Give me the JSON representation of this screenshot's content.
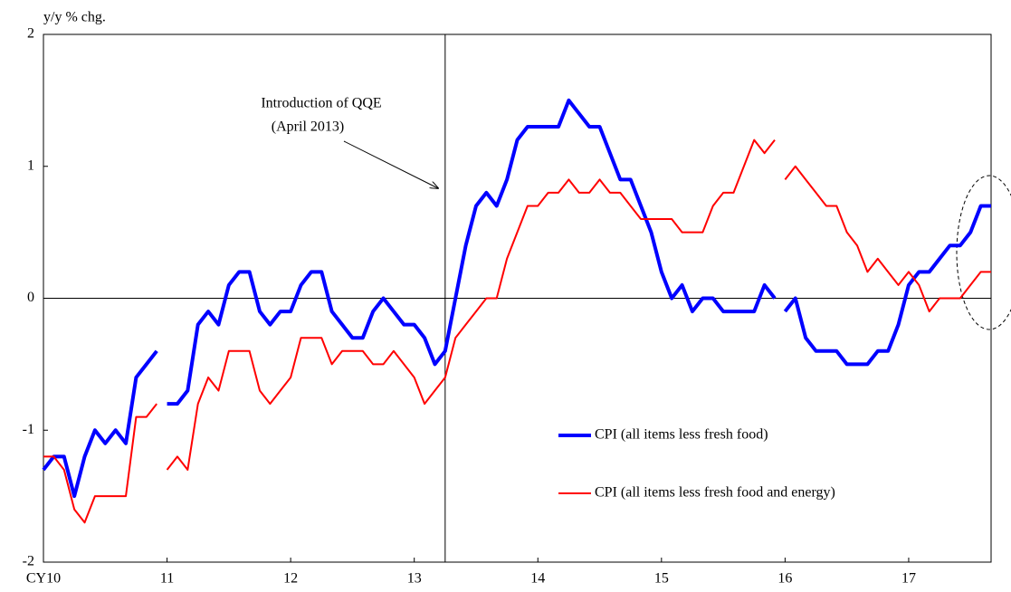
{
  "chart_data": {
    "type": "line",
    "ylabel": "y/y % chg.",
    "annotation": [
      "Introduction of QQE",
      "(April 2013)"
    ],
    "event_x": 39,
    "x": [
      0,
      1,
      2,
      3,
      4,
      5,
      6,
      7,
      8,
      9,
      10,
      11,
      11.5,
      12,
      13,
      14,
      15,
      16,
      17,
      18,
      19,
      20,
      21,
      22,
      23,
      24,
      25,
      26,
      27,
      28,
      29,
      30,
      31,
      32,
      33,
      34,
      35,
      36,
      37,
      38,
      39,
      40,
      41,
      42,
      43,
      44,
      45,
      46,
      47,
      48,
      49,
      50,
      51,
      52,
      53,
      54,
      55,
      56,
      57,
      58,
      59,
      60,
      61,
      62,
      63,
      64,
      65,
      66,
      67,
      68,
      69,
      70,
      71,
      71.5,
      72,
      73,
      74,
      75,
      76,
      77,
      78,
      79,
      80,
      81,
      82,
      83,
      84,
      85,
      86,
      87,
      88,
      89,
      90,
      91,
      92
    ],
    "series": [
      {
        "name": "CPI (all items less fresh food)",
        "color": "#0000ff",
        "values": [
          -1.3,
          -1.2,
          -1.2,
          -1.5,
          -1.2,
          -1.0,
          -1.1,
          -1.0,
          -1.1,
          -0.6,
          -0.5,
          -0.4,
          null,
          -0.8,
          -0.8,
          -0.7,
          -0.2,
          -0.1,
          -0.2,
          0.1,
          0.2,
          0.2,
          -0.1,
          -0.2,
          -0.1,
          -0.1,
          0.1,
          0.2,
          0.2,
          -0.1,
          -0.2,
          -0.3,
          -0.3,
          -0.1,
          0.0,
          -0.1,
          -0.2,
          -0.2,
          -0.3,
          -0.5,
          -0.4,
          0.0,
          0.4,
          0.7,
          0.8,
          0.7,
          0.9,
          1.2,
          1.3,
          1.3,
          1.3,
          1.3,
          1.5,
          1.4,
          1.3,
          1.3,
          1.1,
          0.9,
          0.9,
          0.7,
          0.5,
          0.2,
          0.0,
          0.1,
          -0.1,
          0.0,
          0.0,
          -0.1,
          -0.1,
          -0.1,
          -0.1,
          0.1,
          0.0,
          null,
          -0.1,
          0.0,
          -0.3,
          -0.4,
          -0.4,
          -0.4,
          -0.5,
          -0.5,
          -0.5,
          -0.4,
          -0.4,
          -0.2,
          0.1,
          0.2,
          0.2,
          0.3,
          0.4,
          0.4,
          0.5,
          0.7,
          0.7
        ]
      },
      {
        "name": "CPI (all items less fresh food and energy)",
        "color": "#ff0000",
        "values": [
          -1.2,
          -1.2,
          -1.3,
          -1.6,
          -1.7,
          -1.5,
          -1.5,
          -1.5,
          -1.5,
          -0.9,
          -0.9,
          -0.8,
          null,
          -1.3,
          -1.2,
          -1.3,
          -0.8,
          -0.6,
          -0.7,
          -0.4,
          -0.4,
          -0.4,
          -0.7,
          -0.8,
          -0.7,
          -0.6,
          -0.3,
          -0.3,
          -0.3,
          -0.5,
          -0.4,
          -0.4,
          -0.4,
          -0.5,
          -0.5,
          -0.4,
          -0.5,
          -0.6,
          -0.8,
          -0.7,
          -0.6,
          -0.3,
          -0.2,
          -0.1,
          0.0,
          0.0,
          0.3,
          0.5,
          0.7,
          0.7,
          0.8,
          0.8,
          0.9,
          0.8,
          0.8,
          0.9,
          0.8,
          0.8,
          0.7,
          0.6,
          0.6,
          0.6,
          0.6,
          0.5,
          0.5,
          0.5,
          0.7,
          0.8,
          0.8,
          1.0,
          1.2,
          1.1,
          1.2,
          null,
          0.9,
          1.0,
          0.9,
          0.8,
          0.7,
          0.7,
          0.5,
          0.4,
          0.2,
          0.3,
          0.2,
          0.1,
          0.2,
          0.1,
          -0.1,
          0.0,
          0.0,
          0.0,
          0.1,
          0.2,
          0.2
        ]
      }
    ],
    "xlim": [
      0,
      92
    ],
    "xticks": [
      {
        "value": 0,
        "label": "CY10"
      },
      {
        "value": 12,
        "label": "11"
      },
      {
        "value": 24,
        "label": "12"
      },
      {
        "value": 36,
        "label": "13"
      },
      {
        "value": 48,
        "label": "14"
      },
      {
        "value": 60,
        "label": "15"
      },
      {
        "value": 72,
        "label": "16"
      },
      {
        "value": 84,
        "label": "17"
      }
    ],
    "ylim": [
      -2,
      2
    ],
    "yticks": [
      -2,
      -1,
      0,
      1,
      2
    ]
  }
}
